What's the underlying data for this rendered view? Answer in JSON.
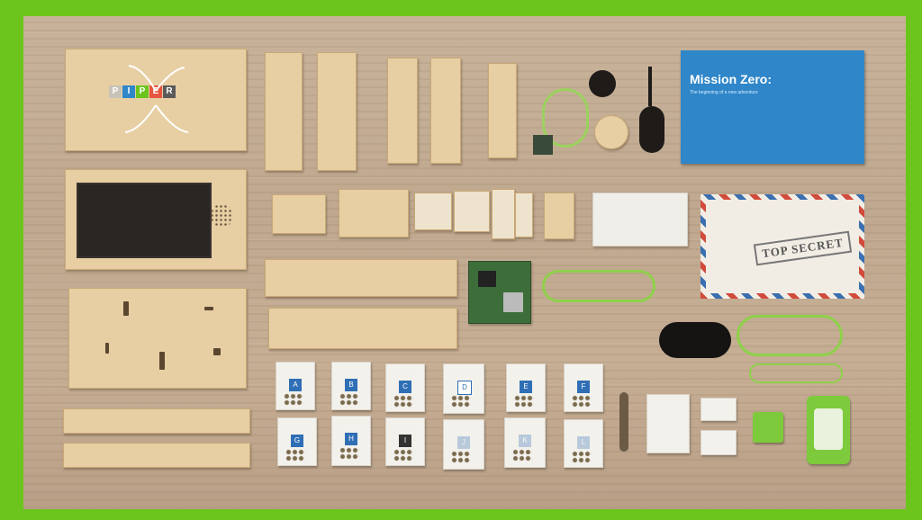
{
  "image": {
    "logo_letters": [
      "P",
      "I",
      "P",
      "E",
      "R"
    ],
    "logo_colors": [
      "#c8c3b8",
      "#2f86c9",
      "#6cc51c",
      "#e5553f",
      "#5a5a5a"
    ],
    "book": {
      "title": "Mission Zero:",
      "subtitle": "The beginning of a new adventure"
    },
    "envelope": {
      "stamp": "TOP SECRET"
    },
    "bags_top": [
      "A",
      "B",
      "C",
      "D",
      "E",
      "F"
    ],
    "bags_bottom": [
      "G",
      "H",
      "I",
      "J",
      "K",
      "L"
    ],
    "colors": {
      "border": "#6cc51c",
      "wood": "#c4ad93",
      "plywood": "#e7cfa3",
      "book": "#2f86c9",
      "cable": "#8ed14a"
    }
  }
}
